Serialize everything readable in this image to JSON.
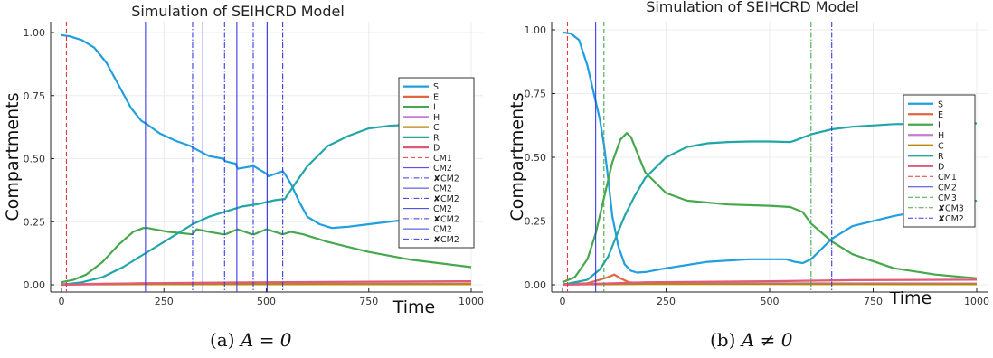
{
  "chart_data": [
    {
      "type": "line",
      "title": "Simulation of SEIHCRD Model",
      "xlabel": "Time",
      "ylabel": "Compartments",
      "xlim": [
        0,
        1000
      ],
      "ylim": [
        0,
        1
      ],
      "xticks": [
        "0",
        "250",
        "500",
        "750",
        "1000"
      ],
      "yticks": [
        "0.00",
        "0.25",
        "0.50",
        "0.75",
        "1.00"
      ],
      "grid": true,
      "legend_position": "right",
      "series": [
        {
          "name": "S",
          "color": "#1f9fdf",
          "x": [
            0,
            20,
            50,
            80,
            110,
            140,
            170,
            195,
            205,
            240,
            280,
            315,
            325,
            360,
            395,
            400,
            425,
            430,
            465,
            470,
            500,
            505,
            540,
            545,
            560,
            580,
            600,
            630,
            660,
            700,
            750,
            800,
            900,
            1000
          ],
          "y": [
            0.99,
            0.985,
            0.97,
            0.94,
            0.88,
            0.79,
            0.7,
            0.65,
            0.64,
            0.6,
            0.57,
            0.55,
            0.54,
            0.51,
            0.5,
            0.49,
            0.48,
            0.46,
            0.47,
            0.47,
            0.44,
            0.43,
            0.45,
            0.44,
            0.4,
            0.33,
            0.27,
            0.24,
            0.225,
            0.23,
            0.24,
            0.25,
            0.27,
            0.28
          ]
        },
        {
          "name": "E",
          "color": "#e06644",
          "x": [
            0,
            100,
            200,
            300,
            500,
            700,
            1000
          ],
          "y": [
            0.002,
            0.004,
            0.006,
            0.004,
            0.005,
            0.004,
            0.004
          ]
        },
        {
          "name": "I",
          "color": "#45a84c",
          "x": [
            0,
            30,
            60,
            100,
            140,
            175,
            200,
            210,
            260,
            320,
            330,
            360,
            395,
            400,
            430,
            465,
            470,
            500,
            540,
            560,
            590,
            650,
            750,
            850,
            1000
          ],
          "y": [
            0.01,
            0.02,
            0.04,
            0.09,
            0.16,
            0.21,
            0.225,
            0.225,
            0.21,
            0.2,
            0.22,
            0.21,
            0.2,
            0.2,
            0.22,
            0.2,
            0.2,
            0.22,
            0.2,
            0.21,
            0.2,
            0.17,
            0.13,
            0.1,
            0.07
          ]
        },
        {
          "name": "H",
          "color": "#c67bd5",
          "x": [
            0,
            200,
            500,
            1000
          ],
          "y": [
            0.002,
            0.004,
            0.004,
            0.004
          ]
        },
        {
          "name": "C",
          "color": "#b8860b",
          "x": [
            0,
            200,
            500,
            1000
          ],
          "y": [
            0.001,
            0.002,
            0.002,
            0.002
          ]
        },
        {
          "name": "R",
          "color": "#20a6a9",
          "x": [
            0,
            50,
            100,
            150,
            200,
            260,
            320,
            360,
            400,
            440,
            480,
            520,
            545,
            570,
            600,
            650,
            700,
            750,
            800,
            850,
            900,
            1000
          ],
          "y": [
            0.0,
            0.01,
            0.03,
            0.07,
            0.12,
            0.18,
            0.24,
            0.27,
            0.29,
            0.31,
            0.32,
            0.335,
            0.34,
            0.4,
            0.47,
            0.55,
            0.59,
            0.62,
            0.63,
            0.635,
            0.64,
            0.64
          ]
        },
        {
          "name": "D",
          "color": "#e05a7a",
          "x": [
            0,
            200,
            500,
            700,
            1000
          ],
          "y": [
            0.0,
            0.006,
            0.01,
            0.012,
            0.014
          ]
        }
      ],
      "control_lines": [
        {
          "name": "CM1",
          "style": "dashed",
          "color": "#e83a3a",
          "x": 12
        },
        {
          "name": "CM2",
          "style": "solid",
          "color": "#3b3be6",
          "x": 205
        },
        {
          "name": "✘CM2",
          "style": "dashdot",
          "color": "#3b3be6",
          "x": 320
        },
        {
          "name": "CM2",
          "style": "solid",
          "color": "#3b3be6",
          "x": 345
        },
        {
          "name": "✘CM2",
          "style": "dashdot",
          "color": "#3b3be6",
          "x": 398
        },
        {
          "name": "CM2",
          "style": "solid",
          "color": "#3b3be6",
          "x": 428
        },
        {
          "name": "✘CM2",
          "style": "dashdot",
          "color": "#3b3be6",
          "x": 468
        },
        {
          "name": "CM2",
          "style": "solid",
          "color": "#3b3be6",
          "x": 502
        },
        {
          "name": "✘CM2",
          "style": "dashdot",
          "color": "#3b3be6",
          "x": 540
        }
      ]
    },
    {
      "type": "line",
      "title": "Simulation of SEIHCRD Model",
      "xlabel": "Time",
      "ylabel": "Compartments",
      "xlim": [
        0,
        1000
      ],
      "ylim": [
        0,
        1
      ],
      "xticks": [
        "0",
        "250",
        "500",
        "750",
        "1000"
      ],
      "yticks": [
        "0.00",
        "0.25",
        "0.50",
        "0.75",
        "1.00"
      ],
      "grid": true,
      "legend_position": "right",
      "series": [
        {
          "name": "S",
          "color": "#1f9fdf",
          "x": [
            0,
            20,
            40,
            60,
            80,
            90,
            100,
            110,
            120,
            135,
            150,
            165,
            180,
            200,
            250,
            350,
            450,
            540,
            560,
            580,
            600,
            650,
            700,
            800,
            900,
            1000
          ],
          "y": [
            0.99,
            0.985,
            0.96,
            0.86,
            0.72,
            0.65,
            0.55,
            0.42,
            0.27,
            0.15,
            0.08,
            0.055,
            0.048,
            0.05,
            0.065,
            0.09,
            0.1,
            0.1,
            0.09,
            0.085,
            0.1,
            0.18,
            0.23,
            0.27,
            0.3,
            0.33
          ]
        },
        {
          "name": "E",
          "color": "#e06644",
          "x": [
            0,
            60,
            90,
            110,
            125,
            140,
            160,
            200,
            300,
            500,
            1000
          ],
          "y": [
            0.002,
            0.006,
            0.02,
            0.03,
            0.04,
            0.025,
            0.01,
            0.006,
            0.005,
            0.004,
            0.004
          ]
        },
        {
          "name": "I",
          "color": "#45a84c",
          "x": [
            0,
            30,
            60,
            80,
            100,
            120,
            140,
            155,
            165,
            180,
            200,
            250,
            300,
            400,
            500,
            550,
            580,
            600,
            650,
            700,
            800,
            900,
            1000
          ],
          "y": [
            0.01,
            0.03,
            0.1,
            0.2,
            0.34,
            0.48,
            0.57,
            0.595,
            0.58,
            0.52,
            0.44,
            0.36,
            0.33,
            0.315,
            0.31,
            0.305,
            0.285,
            0.24,
            0.17,
            0.12,
            0.065,
            0.04,
            0.025
          ]
        },
        {
          "name": "H",
          "color": "#c67bd5",
          "x": [
            0,
            200,
            500,
            1000
          ],
          "y": [
            0.002,
            0.006,
            0.006,
            0.005
          ]
        },
        {
          "name": "C",
          "color": "#b8860b",
          "x": [
            0,
            200,
            500,
            1000
          ],
          "y": [
            0.001,
            0.003,
            0.003,
            0.002
          ]
        },
        {
          "name": "R",
          "color": "#20a6a9",
          "x": [
            0,
            60,
            90,
            110,
            130,
            150,
            175,
            200,
            250,
            300,
            350,
            400,
            450,
            500,
            550,
            560,
            600,
            650,
            700,
            800,
            900,
            1000
          ],
          "y": [
            0.0,
            0.02,
            0.06,
            0.11,
            0.19,
            0.27,
            0.35,
            0.42,
            0.5,
            0.54,
            0.555,
            0.56,
            0.562,
            0.562,
            0.56,
            0.565,
            0.59,
            0.61,
            0.62,
            0.63,
            0.632,
            0.633
          ]
        },
        {
          "name": "D",
          "color": "#e05a7a",
          "x": [
            0,
            200,
            500,
            700,
            1000
          ],
          "y": [
            0.0,
            0.01,
            0.014,
            0.018,
            0.02
          ]
        }
      ],
      "control_lines": [
        {
          "name": "CM1",
          "style": "dashed",
          "color": "#e83a3a",
          "x": 12
        },
        {
          "name": "CM2",
          "style": "solid",
          "color": "#3b3be6",
          "x": 80
        },
        {
          "name": "CM3",
          "style": "dashed",
          "color": "#45a84c",
          "x": 100
        },
        {
          "name": "✘CM3",
          "style": "dashdot",
          "color": "#45a84c",
          "x": 600
        },
        {
          "name": "✘CM2",
          "style": "dashdot",
          "color": "#3b3be6",
          "x": 650
        }
      ]
    }
  ],
  "captions": [
    {
      "label": "(a)",
      "math": "A = 0"
    },
    {
      "label": "(b)",
      "math": "A ≠ 0"
    }
  ]
}
